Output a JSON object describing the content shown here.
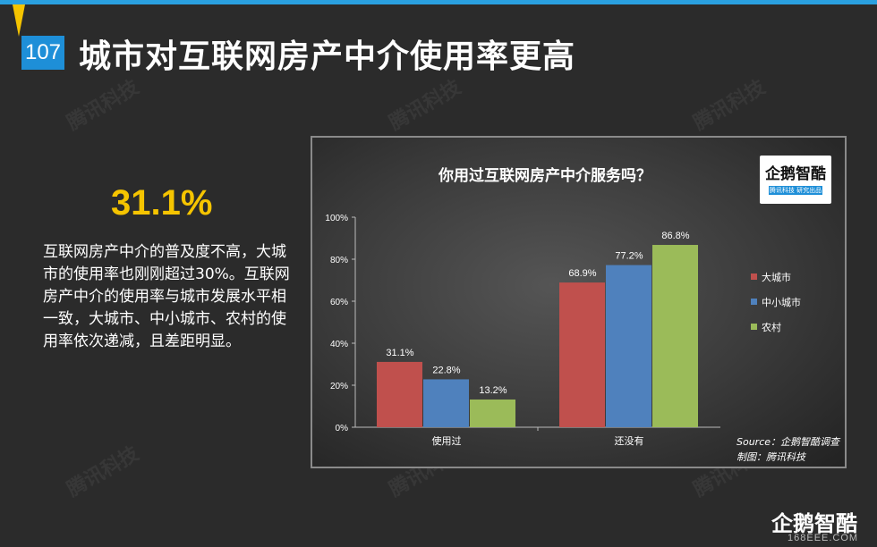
{
  "header": {
    "page_number": "107",
    "title": "城市对互联网房产中介使用率更高"
  },
  "highlight": {
    "value": "31.1%",
    "description": "互联网房产中介的普及度不高，大城市的使用率也刚刚超过30%。互联网房产中介的使用率与城市发展水平相一致，大城市、中小城市、农村的使用率依次递减，且差距明显。"
  },
  "watermark": {
    "text": "腾讯科技"
  },
  "chart_logo": {
    "name": "企鹅智酷",
    "tag": "腾讯科技 研究出品"
  },
  "chart_data": {
    "type": "bar",
    "title": "你用过互联网房产中介服务吗？",
    "categories": [
      "使用过",
      "还没有"
    ],
    "series": [
      {
        "name": "大城市",
        "color": "#c0504d",
        "values": [
          31.1,
          68.9
        ],
        "labels": [
          "31.1%",
          "68.9%"
        ]
      },
      {
        "name": "中小城市",
        "color": "#4f81bd",
        "values": [
          22.8,
          77.2
        ],
        "labels": [
          "22.8%",
          "77.2%"
        ]
      },
      {
        "name": "农村",
        "color": "#9bbb59",
        "values": [
          13.2,
          86.8
        ],
        "labels": [
          "13.2%",
          "86.8%"
        ]
      }
    ],
    "ylim": [
      0,
      100
    ],
    "yticks": [
      "0%",
      "20%",
      "40%",
      "60%",
      "80%",
      "100%"
    ],
    "legend": "right",
    "grid": false
  },
  "source": {
    "line1": "Source：企鹅智酷调查",
    "line2": "制图：腾讯科技"
  },
  "footer": {
    "logo": "企鹅智酷",
    "url": "168EEE.COM"
  }
}
